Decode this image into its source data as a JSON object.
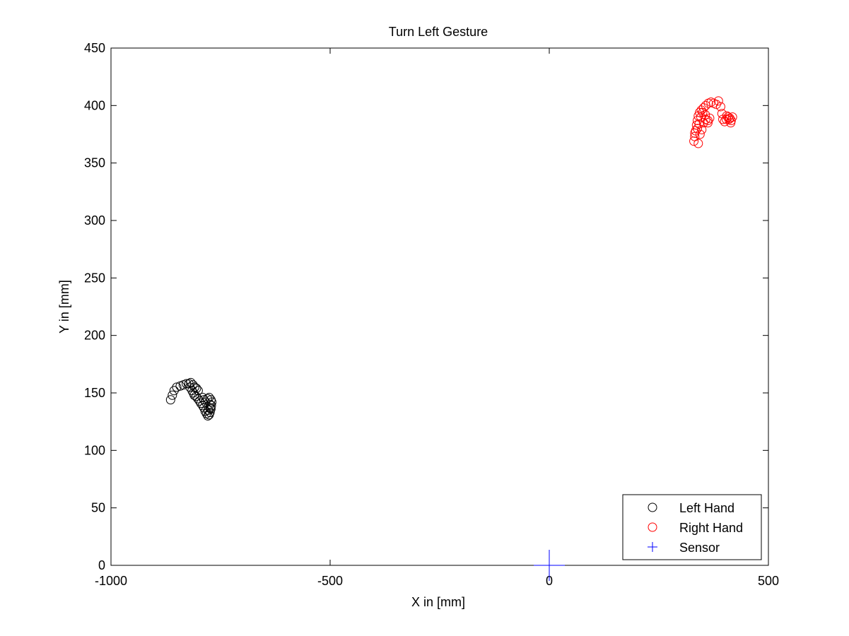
{
  "chart_data": {
    "type": "scatter",
    "title": "Turn Left Gesture",
    "xlabel": "X in [mm]",
    "ylabel": "Y in [mm]",
    "xlim": [
      -1000,
      500
    ],
    "ylim": [
      0,
      450
    ],
    "xticks": [
      -1000,
      -500,
      0,
      500
    ],
    "yticks": [
      0,
      50,
      100,
      150,
      200,
      250,
      300,
      350,
      400,
      450
    ],
    "grid": false,
    "legend_position": "bottom-right",
    "series": [
      {
        "name": "Left Hand",
        "marker": "circle",
        "color": "#000000",
        "points": [
          [
            -864,
            144
          ],
          [
            -860,
            148
          ],
          [
            -856,
            152
          ],
          [
            -850,
            155
          ],
          [
            -842,
            156
          ],
          [
            -835,
            157
          ],
          [
            -828,
            158
          ],
          [
            -822,
            158
          ],
          [
            -818,
            159
          ],
          [
            -813,
            157
          ],
          [
            -809,
            155
          ],
          [
            -805,
            154
          ],
          [
            -801,
            152
          ],
          [
            -820,
            155
          ],
          [
            -815,
            152
          ],
          [
            -812,
            150
          ],
          [
            -810,
            148
          ],
          [
            -806,
            147
          ],
          [
            -802,
            145
          ],
          [
            -798,
            143
          ],
          [
            -795,
            141
          ],
          [
            -791,
            139
          ],
          [
            -788,
            137
          ],
          [
            -785,
            134
          ],
          [
            -782,
            132
          ],
          [
            -779,
            130
          ],
          [
            -776,
            131
          ],
          [
            -774,
            133
          ],
          [
            -772,
            136
          ],
          [
            -771,
            139
          ],
          [
            -770,
            142
          ],
          [
            -772,
            144
          ],
          [
            -776,
            146
          ],
          [
            -780,
            145
          ],
          [
            -784,
            142
          ],
          [
            -788,
            144
          ],
          [
            -791,
            146
          ],
          [
            -774,
            140
          ],
          [
            -773,
            137
          ],
          [
            -778,
            135
          ]
        ]
      },
      {
        "name": "Right Hand",
        "marker": "circle",
        "color": "#ff0000",
        "points": [
          [
            330,
            369
          ],
          [
            332,
            373
          ],
          [
            334,
            378
          ],
          [
            336,
            383
          ],
          [
            338,
            387
          ],
          [
            340,
            391
          ],
          [
            343,
            394
          ],
          [
            347,
            396
          ],
          [
            352,
            398
          ],
          [
            357,
            400
          ],
          [
            363,
            402
          ],
          [
            369,
            403
          ],
          [
            375,
            402
          ],
          [
            381,
            401
          ],
          [
            386,
            404
          ],
          [
            391,
            399
          ],
          [
            394,
            393
          ],
          [
            396,
            388
          ],
          [
            400,
            386
          ],
          [
            404,
            388
          ],
          [
            408,
            390
          ],
          [
            412,
            389
          ],
          [
            415,
            387
          ],
          [
            418,
            390
          ],
          [
            414,
            385
          ],
          [
            410,
            388
          ],
          [
            405,
            391
          ],
          [
            340,
            367
          ],
          [
            344,
            375
          ],
          [
            348,
            379
          ],
          [
            352,
            385
          ],
          [
            357,
            388
          ],
          [
            362,
            387
          ],
          [
            366,
            389
          ],
          [
            362,
            385
          ],
          [
            356,
            392
          ],
          [
            350,
            394
          ],
          [
            346,
            390
          ],
          [
            342,
            384
          ],
          [
            338,
            380
          ],
          [
            332,
            376
          ]
        ]
      },
      {
        "name": "Sensor",
        "marker": "plus",
        "color": "#0000ff",
        "points": [
          [
            0,
            0
          ]
        ]
      }
    ]
  }
}
